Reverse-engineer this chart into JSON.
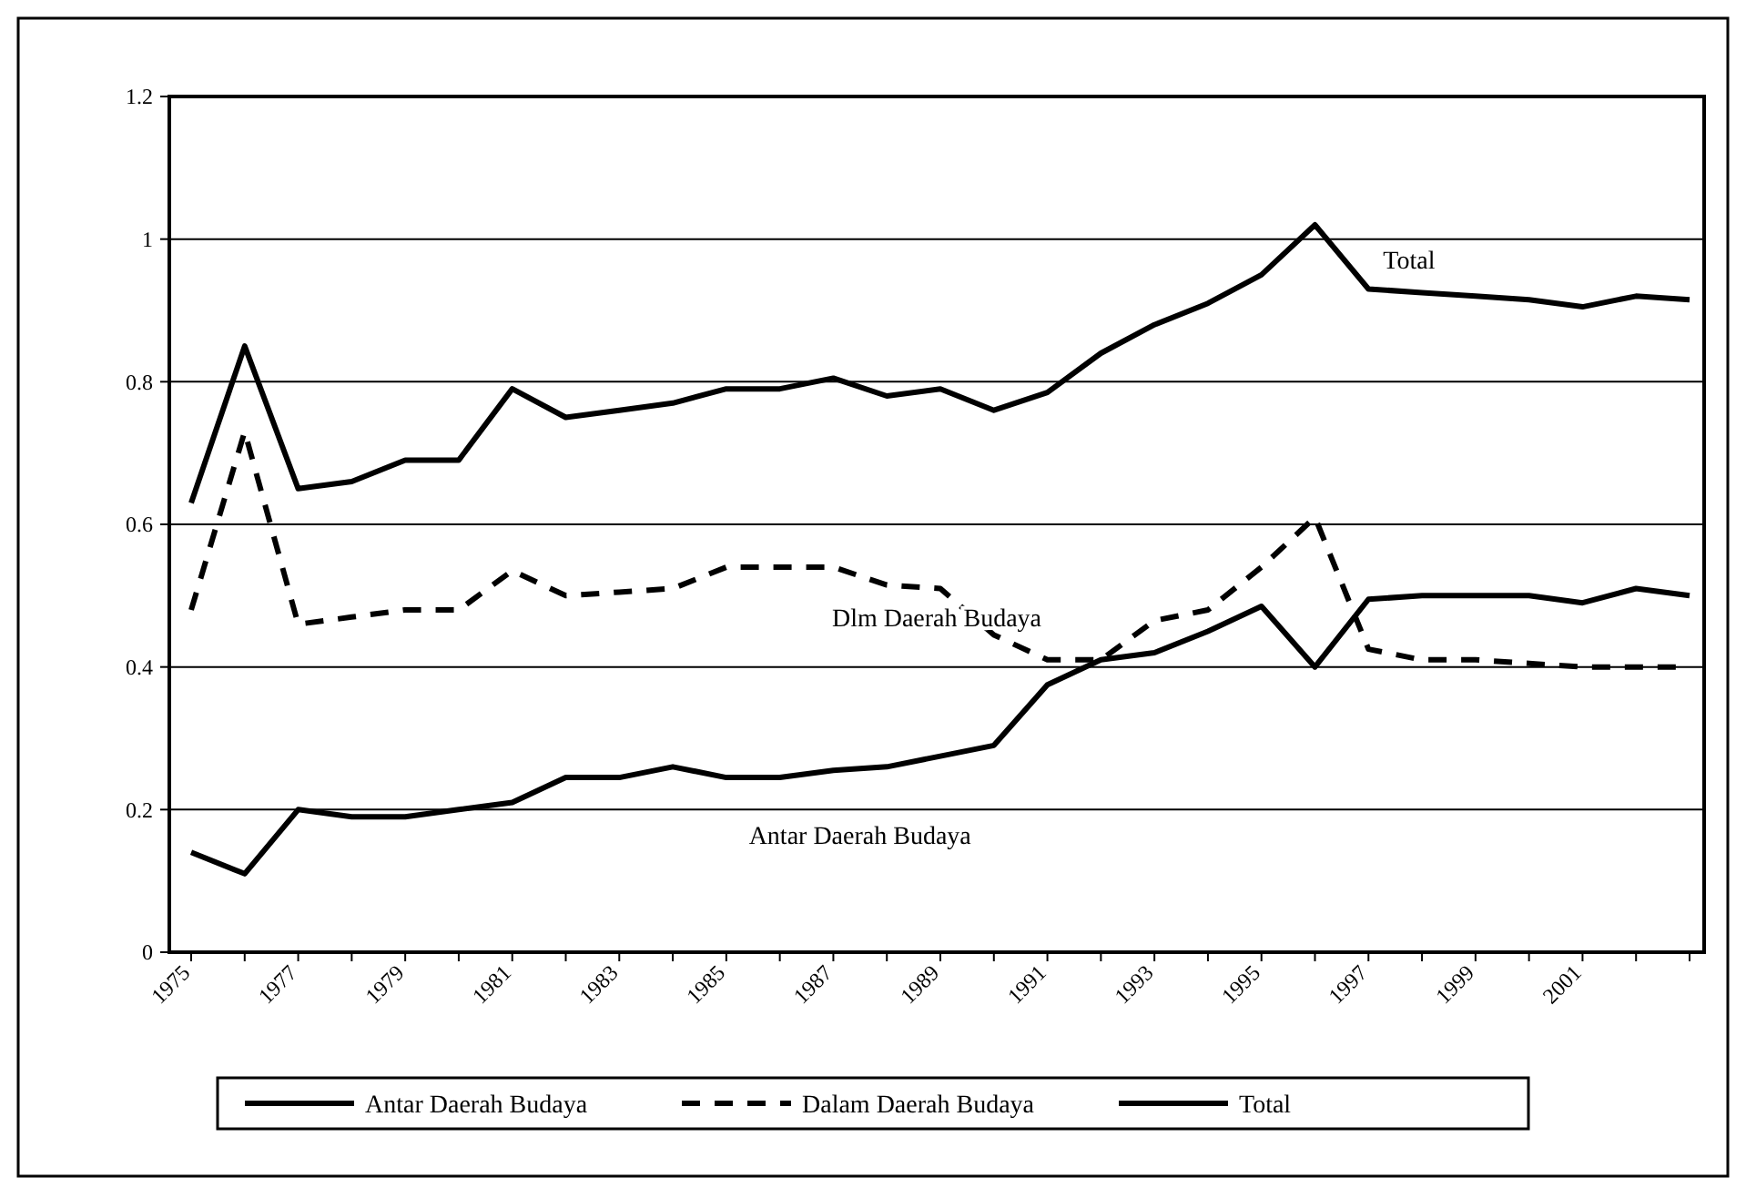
{
  "chart_data": {
    "type": "line",
    "categories": [
      "1975",
      null,
      "1977",
      null,
      "1979",
      null,
      "1981",
      null,
      "1983",
      null,
      "1985",
      null,
      "1987",
      null,
      "1989",
      null,
      "1991",
      null,
      "1993",
      null,
      "1995",
      null,
      "1997",
      null,
      "1999",
      null,
      "2001",
      null,
      null
    ],
    "series": [
      {
        "name": "Antar Daerah Budaya",
        "color": "#000000",
        "line_style": "solid",
        "values": [
          0.14,
          0.11,
          0.2,
          0.19,
          0.19,
          0.2,
          0.21,
          0.245,
          0.245,
          0.26,
          0.245,
          0.245,
          0.255,
          0.26,
          0.275,
          0.29,
          0.375,
          0.41,
          0.42,
          0.45,
          0.485,
          0.4,
          0.495,
          0.5,
          0.5,
          0.5,
          0.49,
          0.51,
          0.5
        ]
      },
      {
        "name": "Dalam Daerah Budaya",
        "color": "#000000",
        "line_style": "dashed",
        "values": [
          0.48,
          0.73,
          0.46,
          0.47,
          0.48,
          0.48,
          0.535,
          0.5,
          0.505,
          0.51,
          0.54,
          0.54,
          0.54,
          0.515,
          0.51,
          0.445,
          0.41,
          0.41,
          0.465,
          0.48,
          0.54,
          0.61,
          0.425,
          0.41,
          0.41,
          0.405,
          0.4,
          0.4,
          0.4
        ]
      },
      {
        "name": "Total",
        "color": "#000000",
        "line_style": "solid",
        "values": [
          0.63,
          0.85,
          0.65,
          0.66,
          0.69,
          0.69,
          0.79,
          0.75,
          0.76,
          0.77,
          0.79,
          0.79,
          0.805,
          0.78,
          0.79,
          0.76,
          0.785,
          0.84,
          0.88,
          0.91,
          0.95,
          1.02,
          0.93,
          0.925,
          0.92,
          0.915,
          0.905,
          0.92,
          0.915
        ]
      }
    ],
    "ylim": [
      0,
      1.2
    ],
    "yticks": [
      0,
      0.2,
      0.4,
      0.6,
      0.8,
      1,
      1.2
    ],
    "grid": "y",
    "legend": "bottom",
    "marker": "none",
    "annotations": [
      {
        "text": "Total",
        "x": "1997",
        "y": 0.93
      },
      "Dlm Daerah Budaya",
      "Antar Daerah Budaya"
    ]
  }
}
